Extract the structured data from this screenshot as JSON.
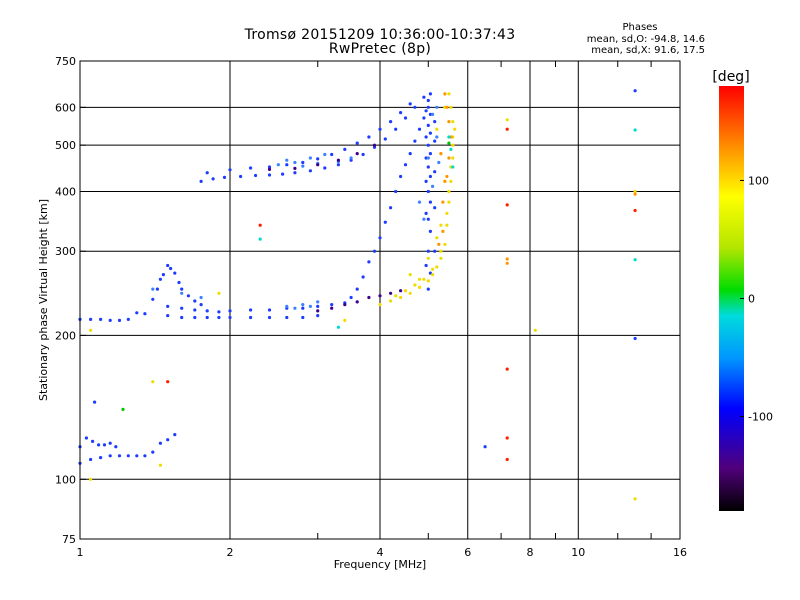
{
  "header": {
    "title_line1": "Tromsø 20151209 10:36:00-10:37:43",
    "title_line2": "RwPretec (8p)",
    "stats_title": "Phases",
    "stats_o": "mean, sd,O: -94.8, 14.6",
    "stats_x": "mean, sd,X:  91.6, 17.5"
  },
  "colorbar": {
    "unit_label": "[deg]",
    "ticks": [
      {
        "value": 100,
        "label": "100"
      },
      {
        "value": 0,
        "label": "0"
      },
      {
        "value": -100,
        "label": "-100"
      }
    ],
    "range": [
      -180,
      180
    ]
  },
  "chart_data": {
    "type": "scatter",
    "title": "Tromsø 20151209 10:36:00-10:37:43",
    "subtitle": "RwPretec (8p)",
    "xlabel": "Frequency [MHz]",
    "ylabel": "Stationary phase Virtual Height [km]",
    "xscale": "log",
    "yscale": "log",
    "xlim": [
      1,
      16
    ],
    "ylim": [
      75,
      750
    ],
    "grid": true,
    "x_ticks": [
      {
        "value": 1,
        "label": "1"
      },
      {
        "value": 2,
        "label": "2"
      },
      {
        "value": 4,
        "label": "4"
      },
      {
        "value": 6,
        "label": "6"
      },
      {
        "value": 8,
        "label": "8"
      },
      {
        "value": 10,
        "label": "10"
      },
      {
        "value": 16,
        "label": "16"
      }
    ],
    "x_gridlines": [
      1,
      2,
      4,
      6,
      8,
      10,
      16
    ],
    "x_minor_ticks": [
      3,
      5,
      7,
      9,
      12,
      14
    ],
    "y_ticks": [
      {
        "value": 75,
        "label": "75"
      },
      {
        "value": 100,
        "label": "100"
      },
      {
        "value": 200,
        "label": "200"
      },
      {
        "value": 300,
        "label": "300"
      },
      {
        "value": 400,
        "label": "400"
      },
      {
        "value": 500,
        "label": "500"
      },
      {
        "value": 600,
        "label": "600"
      },
      {
        "value": 750,
        "label": "750"
      }
    ],
    "y_gridlines": [
      100,
      200,
      300,
      400,
      500,
      600
    ],
    "series": [
      {
        "color": "#1e3cff",
        "phase": -95,
        "points": [
          [
            1.0,
            108
          ],
          [
            1.05,
            110
          ],
          [
            1.1,
            111
          ],
          [
            1.15,
            112
          ],
          [
            1.2,
            112
          ],
          [
            1.25,
            112
          ],
          [
            1.3,
            112
          ],
          [
            1.35,
            112
          ],
          [
            1.4,
            114
          ],
          [
            1.45,
            119
          ],
          [
            1.5,
            121
          ],
          [
            1.55,
            124
          ],
          [
            1.0,
            117
          ],
          [
            1.03,
            122
          ],
          [
            1.06,
            120
          ],
          [
            1.09,
            118
          ],
          [
            1.12,
            118
          ],
          [
            1.15,
            119
          ],
          [
            1.18,
            117
          ],
          [
            1.0,
            216
          ],
          [
            1.05,
            216
          ],
          [
            1.1,
            216
          ],
          [
            1.15,
            215
          ],
          [
            1.2,
            215
          ],
          [
            1.25,
            216
          ],
          [
            1.3,
            223
          ],
          [
            1.35,
            222
          ],
          [
            1.4,
            238
          ],
          [
            1.43,
            250
          ],
          [
            1.45,
            262
          ],
          [
            1.47,
            268
          ],
          [
            1.5,
            280
          ],
          [
            1.52,
            276
          ],
          [
            1.55,
            270
          ],
          [
            1.58,
            258
          ],
          [
            1.6,
            250
          ],
          [
            1.65,
            242
          ],
          [
            1.7,
            236
          ],
          [
            1.75,
            232
          ],
          [
            1.5,
            220
          ],
          [
            1.6,
            218
          ],
          [
            1.7,
            218
          ],
          [
            1.8,
            218
          ],
          [
            1.9,
            218
          ],
          [
            2.0,
            218
          ],
          [
            2.2,
            218
          ],
          [
            2.4,
            218
          ],
          [
            2.6,
            218
          ],
          [
            2.8,
            218
          ],
          [
            3.0,
            220
          ],
          [
            1.5,
            230
          ],
          [
            1.6,
            228
          ],
          [
            1.7,
            226
          ],
          [
            1.8,
            225
          ],
          [
            1.9,
            224
          ],
          [
            2.0,
            225
          ],
          [
            2.2,
            226
          ],
          [
            2.4,
            226
          ],
          [
            2.6,
            228
          ],
          [
            2.8,
            228
          ],
          [
            3.0,
            230
          ],
          [
            3.2,
            232
          ],
          [
            3.4,
            234
          ],
          [
            3.5,
            240
          ],
          [
            3.6,
            250
          ],
          [
            3.7,
            265
          ],
          [
            3.8,
            285
          ],
          [
            3.9,
            300
          ],
          [
            4.0,
            320
          ],
          [
            4.1,
            345
          ],
          [
            4.2,
            370
          ],
          [
            4.3,
            400
          ],
          [
            4.4,
            430
          ],
          [
            4.5,
            455
          ],
          [
            4.6,
            480
          ],
          [
            4.7,
            510
          ],
          [
            4.8,
            540
          ],
          [
            4.9,
            570
          ],
          [
            5.0,
            600
          ],
          [
            1.75,
            420
          ],
          [
            1.85,
            425
          ],
          [
            1.95,
            428
          ],
          [
            2.1,
            430
          ],
          [
            2.25,
            432
          ],
          [
            2.4,
            433
          ],
          [
            2.55,
            435
          ],
          [
            2.7,
            438
          ],
          [
            2.9,
            442
          ],
          [
            3.1,
            448
          ],
          [
            3.3,
            455
          ],
          [
            3.5,
            465
          ],
          [
            3.7,
            478
          ],
          [
            3.9,
            495
          ],
          [
            4.1,
            515
          ],
          [
            4.3,
            540
          ],
          [
            4.5,
            570
          ],
          [
            4.7,
            600
          ],
          [
            4.9,
            630
          ],
          [
            1.8,
            438
          ],
          [
            2.0,
            444
          ],
          [
            2.2,
            448
          ],
          [
            2.4,
            450
          ],
          [
            2.6,
            455
          ],
          [
            2.8,
            460
          ],
          [
            3.0,
            468
          ],
          [
            3.2,
            478
          ],
          [
            3.4,
            490
          ],
          [
            3.6,
            505
          ],
          [
            3.8,
            520
          ],
          [
            4.0,
            540
          ],
          [
            4.2,
            560
          ],
          [
            4.4,
            585
          ],
          [
            4.6,
            610
          ],
          [
            5.0,
            250
          ],
          [
            5.0,
            300
          ],
          [
            5.0,
            350
          ],
          [
            5.0,
            400
          ],
          [
            5.0,
            450
          ],
          [
            5.0,
            500
          ],
          [
            5.0,
            550
          ],
          [
            5.0,
            620
          ],
          [
            5.05,
            270
          ],
          [
            5.05,
            330
          ],
          [
            5.05,
            380
          ],
          [
            5.05,
            430
          ],
          [
            5.05,
            480
          ],
          [
            5.05,
            530
          ],
          [
            5.05,
            580
          ],
          [
            5.05,
            640
          ],
          [
            4.95,
            280
          ],
          [
            4.95,
            360
          ],
          [
            4.95,
            420
          ],
          [
            4.95,
            470
          ],
          [
            4.95,
            520
          ],
          [
            4.95,
            590
          ],
          [
            5.15,
            300
          ],
          [
            5.15,
            370
          ],
          [
            5.15,
            440
          ],
          [
            5.15,
            510
          ],
          [
            5.15,
            560
          ],
          [
            1.07,
            145
          ],
          [
            6.5,
            117
          ],
          [
            13,
            197
          ],
          [
            13,
            650
          ]
        ]
      },
      {
        "color": "#3c82ff",
        "phase": -90,
        "points": [
          [
            2.5,
            455
          ],
          [
            2.7,
            460
          ],
          [
            2.9,
            470
          ],
          [
            3.1,
            478
          ],
          [
            3.3,
            462
          ],
          [
            3.5,
            470
          ],
          [
            2.6,
            465
          ],
          [
            2.8,
            452
          ],
          [
            3.0,
            458
          ],
          [
            2.6,
            230
          ],
          [
            2.8,
            232
          ],
          [
            3.0,
            235
          ],
          [
            2.7,
            228
          ],
          [
            2.9,
            230
          ],
          [
            1.4,
            250
          ],
          [
            1.6,
            245
          ],
          [
            1.75,
            240
          ],
          [
            5.1,
            580
          ],
          [
            5.2,
            600
          ],
          [
            5.0,
            470
          ],
          [
            5.1,
            410
          ],
          [
            4.8,
            380
          ],
          [
            4.9,
            350
          ],
          [
            5.2,
            520
          ],
          [
            5.25,
            460
          ]
        ]
      },
      {
        "color": "#3c008c",
        "phase": -130,
        "points": [
          [
            3.0,
            225
          ],
          [
            3.2,
            228
          ],
          [
            3.4,
            232
          ],
          [
            3.6,
            235
          ],
          [
            3.8,
            240
          ],
          [
            4.0,
            242
          ],
          [
            4.2,
            245
          ],
          [
            4.4,
            248
          ],
          [
            2.4,
            445
          ],
          [
            2.7,
            447
          ],
          [
            3.0,
            455
          ],
          [
            3.3,
            465
          ],
          [
            3.6,
            480
          ],
          [
            3.9,
            500
          ]
        ]
      },
      {
        "color": "#f0dc00",
        "phase": 100,
        "points": [
          [
            4.0,
            232
          ],
          [
            4.2,
            236
          ],
          [
            4.4,
            240
          ],
          [
            4.6,
            245
          ],
          [
            4.8,
            252
          ],
          [
            5.0,
            260
          ],
          [
            5.1,
            268
          ],
          [
            5.2,
            278
          ],
          [
            5.3,
            290
          ],
          [
            5.4,
            310
          ],
          [
            5.45,
            340
          ],
          [
            5.5,
            380
          ],
          [
            5.55,
            420
          ],
          [
            5.6,
            470
          ],
          [
            5.6,
            520
          ],
          [
            5.6,
            560
          ],
          [
            5.55,
            600
          ],
          [
            5.5,
            640
          ],
          [
            4.3,
            242
          ],
          [
            4.5,
            248
          ],
          [
            4.7,
            255
          ],
          [
            4.9,
            262
          ],
          [
            5.1,
            275
          ],
          [
            5.3,
            300
          ],
          [
            5.45,
            360
          ],
          [
            5.5,
            400
          ],
          [
            5.55,
            450
          ],
          [
            5.6,
            500
          ],
          [
            5.65,
            540
          ],
          [
            4.6,
            268
          ],
          [
            4.8,
            262
          ],
          [
            5.0,
            290
          ],
          [
            5.2,
            320
          ],
          [
            5.3,
            340
          ],
          [
            5.4,
            420
          ],
          [
            5.3,
            480
          ],
          [
            5.2,
            540
          ],
          [
            5.4,
            600
          ],
          [
            1.05,
            205
          ],
          [
            1.9,
            245
          ],
          [
            3.4,
            215
          ],
          [
            8.2,
            205
          ],
          [
            1.45,
            107
          ],
          [
            1.4,
            160
          ],
          [
            1.05,
            100
          ],
          [
            7.2,
            565
          ],
          [
            13,
            91
          ],
          [
            13,
            400
          ]
        ]
      },
      {
        "color": "#ff9600",
        "phase": 130,
        "points": [
          [
            5.35,
            380
          ],
          [
            5.45,
            430
          ],
          [
            5.5,
            470
          ],
          [
            5.55,
            520
          ],
          [
            5.5,
            560
          ],
          [
            5.4,
            420
          ],
          [
            5.35,
            330
          ],
          [
            5.25,
            310
          ],
          [
            5.3,
            480
          ],
          [
            5.45,
            600
          ],
          [
            5.4,
            640
          ],
          [
            7.2,
            289
          ],
          [
            7.2,
            283
          ],
          [
            13,
            395
          ]
        ]
      },
      {
        "color": "#ff1e00",
        "phase": 170,
        "points": [
          [
            1.5,
            160
          ],
          [
            7.2,
            540
          ],
          [
            7.2,
            375
          ],
          [
            7.2,
            122
          ],
          [
            7.2,
            110
          ],
          [
            7.2,
            170
          ],
          [
            13,
            365
          ],
          [
            2.3,
            340
          ]
        ]
      },
      {
        "color": "#00dcc8",
        "phase": 20,
        "points": [
          [
            5.55,
            490
          ],
          [
            5.6,
            450
          ],
          [
            5.5,
            520
          ],
          [
            2.3,
            318
          ],
          [
            13,
            538
          ],
          [
            13,
            288
          ],
          [
            3.3,
            208
          ]
        ]
      },
      {
        "color": "#00c800",
        "phase": 45,
        "points": [
          [
            1.22,
            140
          ],
          [
            5.5,
            505
          ]
        ]
      }
    ]
  }
}
